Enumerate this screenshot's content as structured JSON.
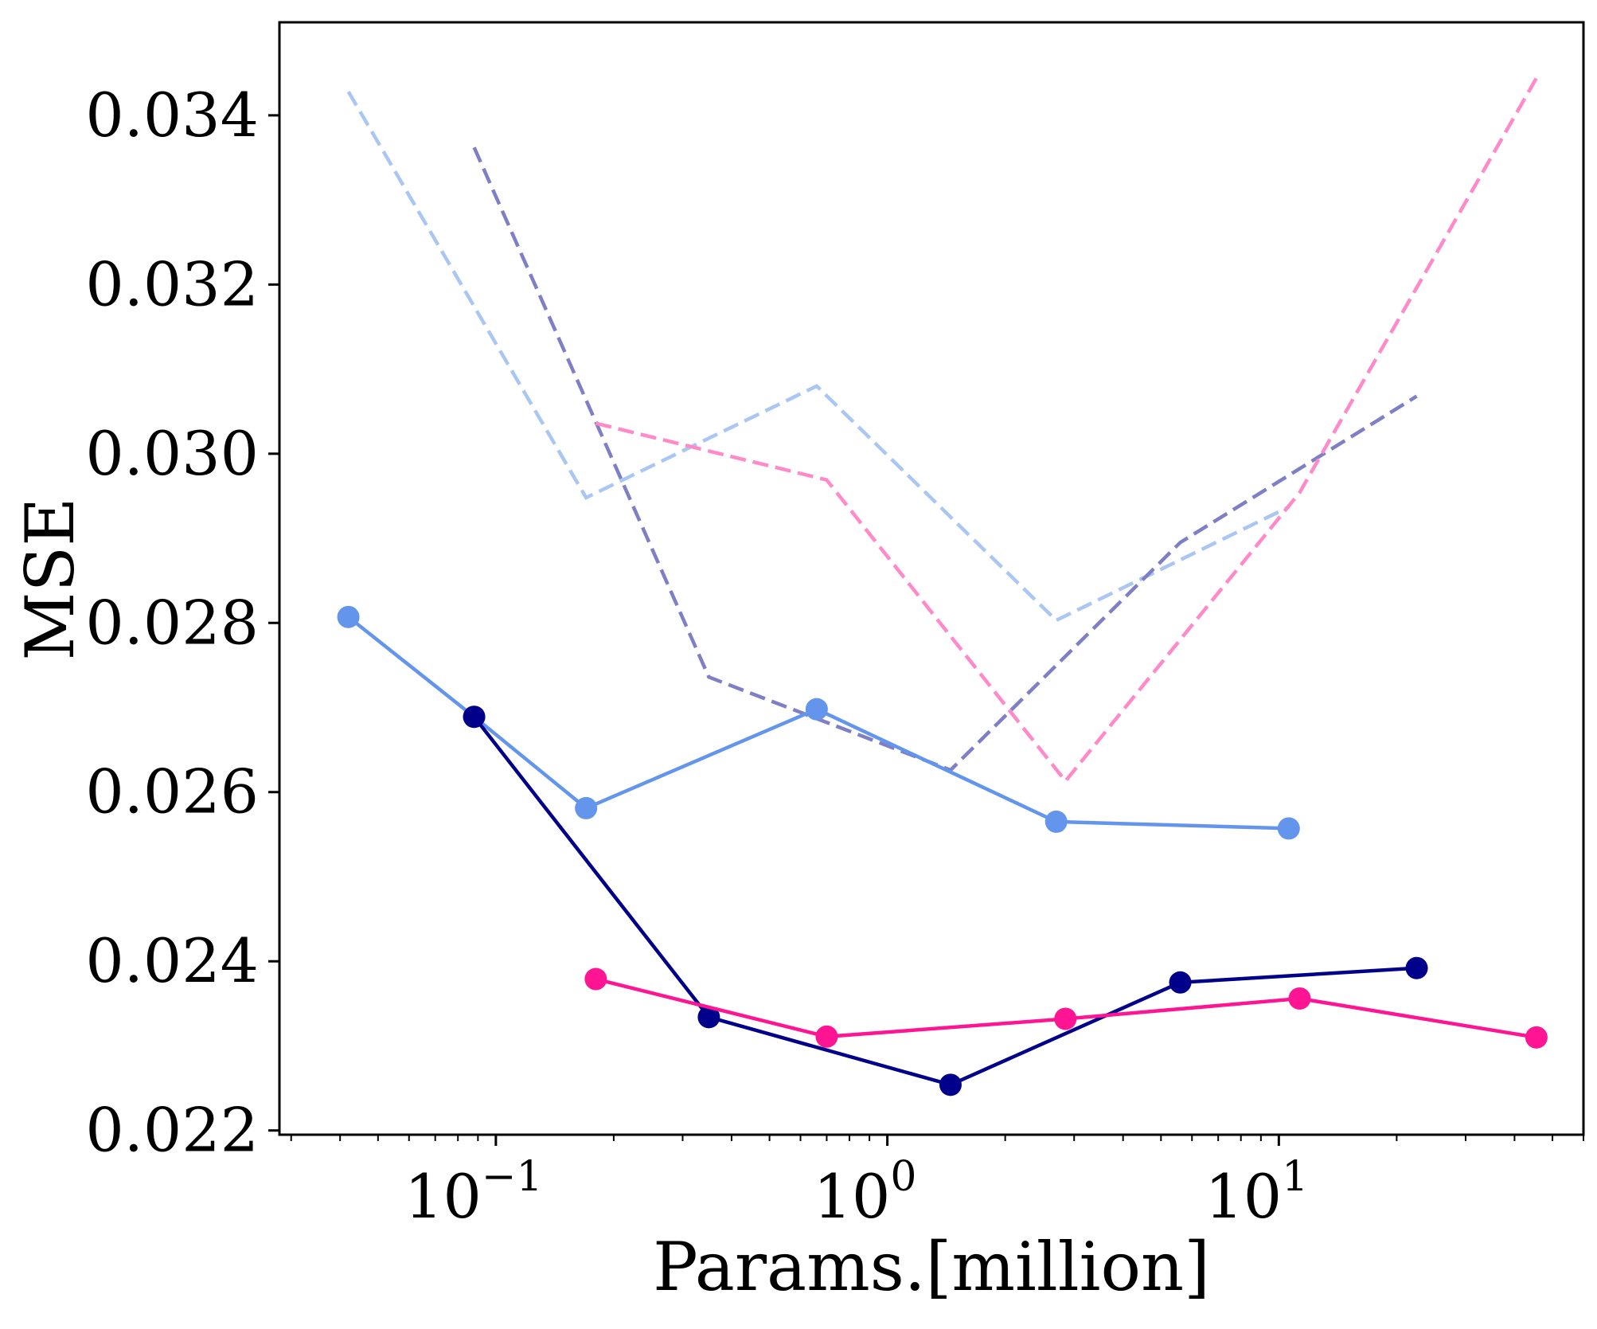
{
  "chart_data": {
    "type": "line",
    "title": "",
    "xlabel": "Params.[million]",
    "ylabel": "MSE",
    "x_scale": "log",
    "xlim": [
      0.028,
      60
    ],
    "ylim": [
      0.02195,
      0.0351
    ],
    "x_ticks": [
      {
        "value": 0.1,
        "base": "10",
        "exp": "−1"
      },
      {
        "value": 1,
        "base": "10",
        "exp": "0"
      },
      {
        "value": 10,
        "base": "10",
        "exp": "1"
      }
    ],
    "y_ticks": [
      {
        "value": 0.022,
        "label": "0.022"
      },
      {
        "value": 0.024,
        "label": "0.024"
      },
      {
        "value": 0.026,
        "label": "0.026"
      },
      {
        "value": 0.028,
        "label": "0.028"
      },
      {
        "value": 0.03,
        "label": "0.030"
      },
      {
        "value": 0.032,
        "label": "0.032"
      },
      {
        "value": 0.034,
        "label": "0.034"
      }
    ],
    "grid": false,
    "legend": "none",
    "series": [
      {
        "color": "#6495ed",
        "style": "solid",
        "markers": true,
        "x": [
          0.042,
          0.088,
          0.17,
          0.66,
          2.7,
          10.6
        ],
        "y": [
          0.02807,
          0.02689,
          0.02581,
          0.02698,
          0.02565,
          0.02557
        ]
      },
      {
        "color": "#00008b",
        "style": "solid",
        "markers": true,
        "x": [
          0.088,
          0.35,
          1.45,
          5.6,
          22.5
        ],
        "y": [
          0.02689,
          0.02334,
          0.02254,
          0.02375,
          0.02392
        ]
      },
      {
        "color": "#ff1493",
        "style": "solid",
        "markers": true,
        "x": [
          0.18,
          0.7,
          2.85,
          11.3,
          45.5
        ],
        "y": [
          0.02379,
          0.02311,
          0.02332,
          0.02356,
          0.0231
        ]
      },
      {
        "color": "#aac6f3",
        "style": "dashed",
        "markers": false,
        "x": [
          0.042,
          0.17,
          0.66,
          2.7,
          10.6
        ],
        "y": [
          0.03428,
          0.02948,
          0.0308,
          0.02803,
          0.02937
        ]
      },
      {
        "color": "#7f7fc5",
        "style": "dashed",
        "markers": false,
        "x": [
          0.088,
          0.35,
          1.45,
          5.6,
          22.5
        ],
        "y": [
          0.03362,
          0.02736,
          0.02626,
          0.02895,
          0.03068
        ]
      },
      {
        "color": "#ff89c9",
        "style": "dashed",
        "markers": false,
        "x": [
          0.18,
          0.7,
          2.85,
          11.3,
          45.5
        ],
        "y": [
          0.03036,
          0.02969,
          0.02613,
          0.02954,
          0.03444
        ]
      }
    ]
  }
}
